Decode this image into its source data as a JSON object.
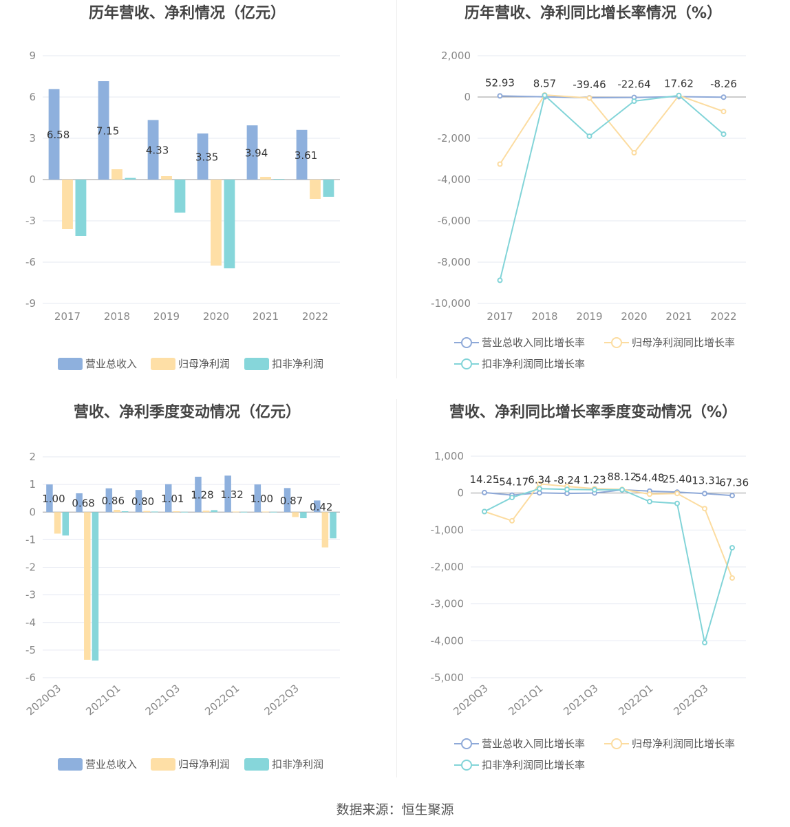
{
  "source_text": "数据来源：恒生聚源",
  "colors": {
    "revenue": "#8eb0dd",
    "net": "#fedfa6",
    "deducted": "#86d6da",
    "revenue_line": "#8ea9d8",
    "net_line": "#fcdca0",
    "deducted_line": "#82d4d8"
  },
  "chart_data": [
    {
      "type": "bar",
      "title": "历年营收、净利情况（亿元）",
      "categories": [
        "2017",
        "2018",
        "2019",
        "2020",
        "2021",
        "2022"
      ],
      "series": [
        {
          "name": "营业总收入",
          "values": [
            6.58,
            7.15,
            4.33,
            3.35,
            3.94,
            3.61
          ],
          "labels": [
            "6.58",
            "7.15",
            "4.33",
            "3.35",
            "3.94",
            "3.61"
          ]
        },
        {
          "name": "归母净利润",
          "values": [
            -3.6,
            0.75,
            0.25,
            -6.25,
            0.2,
            -1.4
          ]
        },
        {
          "name": "扣非净利润",
          "values": [
            -4.1,
            0.12,
            -2.4,
            -6.45,
            0.05,
            -1.25
          ]
        }
      ],
      "yticks": [
        "9",
        "6",
        "3",
        "0",
        "-3",
        "-6",
        "-9"
      ],
      "ylim": [
        -9,
        9
      ],
      "legend": "bottom"
    },
    {
      "type": "line",
      "title": "历年营收、净利同比增长率情况（%）",
      "categories": [
        "2017",
        "2018",
        "2019",
        "2020",
        "2021",
        "2022"
      ],
      "series": [
        {
          "name": "营业总收入同比增长率",
          "values": [
            52.93,
            8.57,
            -39.46,
            -22.64,
            17.62,
            -8.26
          ],
          "labels": [
            "52.93",
            "8.57",
            "-39.46",
            "-22.64",
            "17.62",
            "-8.26"
          ]
        },
        {
          "name": "归母净利润同比增长率",
          "values": [
            -3250,
            100,
            -50,
            -2700,
            75,
            -700
          ]
        },
        {
          "name": "扣非净利润同比增长率",
          "values": [
            -8880,
            80,
            -1900,
            -200,
            75,
            -1800
          ]
        }
      ],
      "yticks": [
        "2,000",
        "0",
        "-2,000",
        "-4,000",
        "-6,000",
        "-8,000",
        "-10,000"
      ],
      "ylim": [
        -10000,
        2000
      ],
      "legend": "bottom"
    },
    {
      "type": "bar",
      "title": "营收、净利季度变动情况（亿元）",
      "categories": [
        "2020Q3",
        "2020Q4",
        "2021Q1",
        "2021Q2",
        "2021Q3",
        "2021Q4",
        "2022Q1",
        "2022Q2",
        "2022Q3",
        "2022Q4"
      ],
      "xticks": [
        "2020Q3",
        "2021Q1",
        "2021Q3",
        "2022Q1",
        "2022Q3"
      ],
      "series": [
        {
          "name": "营业总收入",
          "values": [
            1.0,
            0.68,
            0.86,
            0.8,
            1.01,
            1.28,
            1.32,
            1.0,
            0.87,
            0.42
          ],
          "labels": [
            "1.00",
            "0.68",
            "0.86",
            "0.80",
            "1.01",
            "1.28",
            "1.32",
            "1.00",
            "0.87",
            "0.42"
          ]
        },
        {
          "name": "归母净利润",
          "values": [
            -0.78,
            -5.35,
            0.08,
            0.04,
            0.03,
            0.05,
            0.02,
            0.02,
            -0.18,
            -1.28
          ]
        },
        {
          "name": "扣非净利润",
          "values": [
            -0.85,
            -5.38,
            0.03,
            0.02,
            0.01,
            0.07,
            0.01,
            0.01,
            -0.22,
            -0.95
          ]
        }
      ],
      "yticks": [
        "2",
        "1",
        "0",
        "-1",
        "-2",
        "-3",
        "-4",
        "-5",
        "-6"
      ],
      "ylim": [
        -6,
        2
      ],
      "legend": "bottom"
    },
    {
      "type": "line",
      "title": "营收、净利同比增长率季度变动情况（%）",
      "categories": [
        "2020Q3",
        "2020Q4",
        "2021Q1",
        "2021Q2",
        "2021Q3",
        "2021Q4",
        "2022Q1",
        "2022Q2",
        "2022Q3",
        "2022Q4"
      ],
      "xticks": [
        "2020Q3",
        "2021Q1",
        "2021Q3",
        "2022Q1",
        "2022Q3"
      ],
      "series": [
        {
          "name": "营业总收入同比增长率",
          "values": [
            14.25,
            -54.17,
            6.34,
            -8.24,
            1.23,
            88.12,
            54.48,
            25.4,
            -13.31,
            -67.36
          ],
          "labels": [
            "14.25",
            "-54.17",
            "6.34",
            "-8.24",
            "1.23",
            "88.12",
            "54.48",
            "25.40",
            "-13.31",
            "-67.36"
          ]
        },
        {
          "name": "归母净利润同比增长率",
          "values": [
            -500,
            -750,
            250,
            180,
            120,
            100,
            -30,
            -10,
            -420,
            -2300
          ]
        },
        {
          "name": "扣非净利润同比增长率",
          "values": [
            -500,
            -120,
            120,
            100,
            90,
            90,
            -230,
            -280,
            -4050,
            -1480
          ]
        }
      ],
      "yticks": [
        "1,000",
        "0",
        "-1,000",
        "-2,000",
        "-3,000",
        "-4,000",
        "-5,000"
      ],
      "ylim": [
        -5000,
        1000
      ],
      "legend": "bottom"
    }
  ]
}
